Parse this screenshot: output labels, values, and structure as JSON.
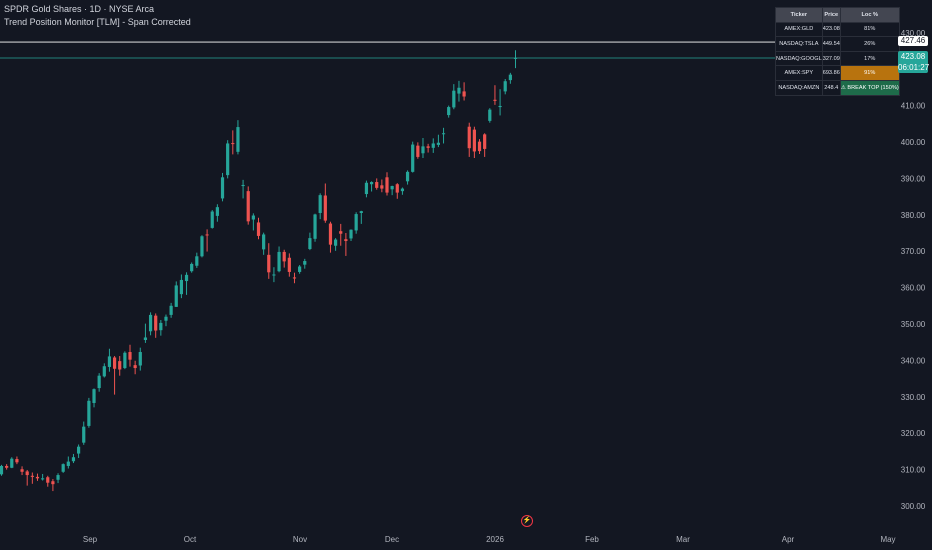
{
  "header": {
    "symbol_line": "SPDR Gold Shares · 1D · NYSE Arca",
    "indicator_line": "Trend Position Monitor [TLM] - Span Corrected"
  },
  "table": {
    "headers": [
      "Ticker",
      "Price",
      "Loc %"
    ],
    "rows": [
      {
        "ticker": "AMEX:GLD",
        "price": "423.08",
        "loc": "81%",
        "state": "neutral"
      },
      {
        "ticker": "NASDAQ:TSLA",
        "price": "449.54",
        "loc": "26%",
        "state": "neutral"
      },
      {
        "ticker": "NASDAQ:GOOGL",
        "price": "327.09",
        "loc": "17%",
        "state": "neutral"
      },
      {
        "ticker": "AMEX:SPY",
        "price": "693.86",
        "loc": "91%",
        "state": "warn"
      },
      {
        "ticker": "NASDAQ:AMZN",
        "price": "248.4",
        "loc": "⚠ BREAK TOP (150%)",
        "state": "break"
      }
    ]
  },
  "price_labels": {
    "last": "427.46",
    "current": "423.08",
    "countdown": "06:01:27"
  },
  "colors": {
    "background": "#131722",
    "up": "#26a69a",
    "down": "#ef5350",
    "grid_text": "#b2b5be"
  },
  "chart_data": {
    "type": "candlestick",
    "y_ticks": [
      300,
      310,
      320,
      330,
      340,
      350,
      360,
      370,
      380,
      390,
      400,
      410,
      420,
      430
    ],
    "y_tick_labels": [
      "300.00",
      "310.00",
      "320.00",
      "330.00",
      "340.00",
      "350.00",
      "360.00",
      "370.00",
      "380.00",
      "390.00",
      "400.00",
      "410.00",
      "420.00",
      "430.00"
    ],
    "x_labels": [
      "Sep",
      "Oct",
      "Nov",
      "Dec",
      "2026",
      "Feb",
      "Mar",
      "Apr",
      "May"
    ],
    "ylim": [
      297,
      437
    ],
    "horizontal_lines": [
      {
        "value": 427.46,
        "color": "#ffffff"
      },
      {
        "value": 423.08,
        "color": "#26a69a"
      }
    ],
    "candles": [
      [
        308.7,
        311.3,
        308.3,
        311.0
      ],
      [
        311.0,
        311.5,
        310.0,
        310.5
      ],
      [
        310.5,
        313.4,
        310.4,
        313.0
      ],
      [
        312.9,
        313.6,
        311.5,
        312.0
      ],
      [
        310.1,
        310.9,
        308.5,
        309.4
      ],
      [
        309.5,
        309.9,
        305.6,
        308.5
      ],
      [
        308.3,
        309.2,
        306.1,
        308.0
      ],
      [
        308.0,
        308.9,
        306.9,
        307.6
      ],
      [
        307.3,
        308.8,
        307.0,
        307.6
      ],
      [
        307.9,
        308.3,
        305.3,
        306.4
      ],
      [
        306.8,
        307.4,
        304.1,
        306.0
      ],
      [
        307.2,
        309.0,
        306.3,
        308.5
      ],
      [
        309.4,
        311.7,
        309.1,
        311.5
      ],
      [
        311.0,
        313.6,
        310.3,
        312.2
      ],
      [
        312.3,
        314.3,
        311.8,
        313.4
      ],
      [
        314.4,
        316.9,
        313.2,
        316.3
      ],
      [
        317.4,
        323.2,
        316.8,
        321.8
      ],
      [
        322.0,
        329.7,
        321.5,
        328.9
      ],
      [
        328.3,
        332.3,
        327.1,
        332.1
      ],
      [
        332.4,
        336.5,
        331.4,
        335.8
      ],
      [
        335.6,
        339.2,
        335.3,
        338.4
      ],
      [
        338.2,
        343.2,
        336.9,
        341.1
      ],
      [
        340.8,
        341.2,
        330.6,
        337.7
      ],
      [
        339.8,
        341.2,
        335.8,
        337.5
      ],
      [
        337.9,
        342.5,
        337.6,
        342.1
      ],
      [
        342.3,
        344.3,
        338.3,
        340.2
      ],
      [
        338.7,
        339.9,
        336.2,
        337.9
      ],
      [
        338.6,
        343.5,
        337.2,
        342.3
      ],
      [
        345.6,
        350.1,
        344.8,
        346.3
      ],
      [
        348.0,
        353.2,
        346.9,
        352.5
      ],
      [
        352.3,
        352.9,
        346.2,
        348.2
      ],
      [
        348.3,
        351.1,
        346.8,
        350.3
      ],
      [
        350.9,
        352.6,
        349.4,
        352.0
      ],
      [
        352.5,
        355.8,
        351.7,
        355.0
      ],
      [
        354.7,
        361.7,
        354.7,
        360.6
      ],
      [
        358.2,
        363.6,
        357.1,
        362.1
      ],
      [
        361.8,
        364.2,
        358.0,
        363.5
      ],
      [
        364.5,
        366.9,
        364.1,
        366.5
      ],
      [
        366.0,
        369.6,
        365.4,
        368.6
      ],
      [
        368.6,
        374.4,
        368.3,
        374.1
      ],
      [
        374.6,
        376.0,
        369.9,
        374.4
      ],
      [
        376.4,
        381.3,
        376.2,
        380.9
      ],
      [
        379.7,
        382.9,
        378.1,
        382.1
      ],
      [
        384.5,
        391.5,
        383.7,
        390.3
      ],
      [
        390.9,
        400.5,
        390.0,
        399.6
      ],
      [
        399.7,
        403.2,
        396.6,
        399.5
      ],
      [
        397.3,
        406.0,
        396.6,
        404.1
      ],
      [
        387.9,
        389.6,
        384.5,
        388.2
      ],
      [
        386.5,
        387.8,
        377.3,
        378.2
      ],
      [
        378.7,
        380.4,
        375.7,
        379.8
      ],
      [
        377.9,
        379.2,
        373.3,
        374.2
      ],
      [
        370.5,
        375.1,
        369.0,
        374.6
      ],
      [
        369.0,
        372.2,
        362.4,
        364.2
      ],
      [
        363.6,
        365.6,
        361.5,
        363.6
      ],
      [
        364.5,
        371.3,
        364.2,
        369.8
      ],
      [
        369.8,
        370.4,
        365.5,
        367.2
      ],
      [
        368.2,
        369.4,
        363.0,
        364.3
      ],
      [
        362.8,
        364.1,
        361.2,
        362.5
      ],
      [
        364.3,
        366.2,
        363.8,
        365.8
      ],
      [
        366.3,
        367.9,
        365.2,
        367.3
      ],
      [
        370.6,
        375.1,
        370.3,
        373.6
      ],
      [
        373.4,
        380.3,
        372.6,
        380.1
      ],
      [
        380.5,
        385.9,
        378.8,
        385.4
      ],
      [
        385.3,
        388.6,
        377.8,
        378.4
      ],
      [
        377.6,
        378.1,
        369.6,
        371.8
      ],
      [
        371.5,
        373.6,
        370.1,
        373.2
      ],
      [
        375.5,
        377.5,
        371.5,
        374.8
      ],
      [
        373.3,
        375.0,
        368.7,
        372.8
      ],
      [
        373.5,
        376.0,
        372.8,
        375.9
      ],
      [
        375.7,
        380.7,
        374.8,
        380.2
      ],
      [
        380.5,
        381.1,
        377.5,
        381.0
      ],
      [
        385.7,
        389.4,
        384.8,
        388.8
      ],
      [
        388.4,
        389.2,
        386.4,
        389.0
      ],
      [
        389.0,
        390.0,
        386.9,
        387.4
      ],
      [
        388.1,
        389.7,
        386.2,
        387.2
      ],
      [
        390.3,
        391.7,
        385.3,
        386.1
      ],
      [
        387.0,
        388.0,
        385.4,
        387.9
      ],
      [
        388.4,
        388.7,
        384.4,
        386.1
      ],
      [
        386.5,
        387.5,
        385.5,
        387.2
      ],
      [
        389.2,
        392.2,
        388.3,
        391.8
      ],
      [
        391.8,
        400.1,
        391.6,
        399.3
      ],
      [
        399.0,
        399.9,
        395.4,
        395.9
      ],
      [
        396.9,
        401.1,
        395.6,
        398.8
      ],
      [
        398.8,
        399.5,
        397.1,
        398.4
      ],
      [
        398.4,
        401.0,
        397.0,
        399.6
      ],
      [
        399.2,
        402.0,
        398.6,
        399.8
      ],
      [
        402.2,
        403.9,
        399.6,
        402.4
      ],
      [
        407.4,
        410.0,
        406.7,
        409.6
      ],
      [
        409.5,
        415.9,
        409.0,
        414.1
      ],
      [
        413.3,
        416.8,
        411.1,
        414.9
      ],
      [
        413.9,
        416.4,
        411.4,
        412.5
      ],
      [
        404.2,
        405.3,
        395.9,
        398.3
      ],
      [
        403.4,
        404.2,
        395.6,
        397.4
      ],
      [
        400.1,
        400.8,
        396.7,
        397.5
      ],
      [
        402.1,
        402.4,
        395.9,
        398.1
      ],
      [
        405.8,
        409.3,
        405.3,
        408.9
      ],
      [
        411.6,
        415.6,
        410.2,
        411.3
      ],
      [
        409.6,
        414.5,
        407.3,
        409.9
      ],
      [
        413.9,
        417.3,
        413.1,
        416.7
      ],
      [
        417.0,
        419.0,
        416.0,
        418.5
      ],
      [
        423.0,
        425.2,
        420.3,
        423.1
      ]
    ]
  }
}
